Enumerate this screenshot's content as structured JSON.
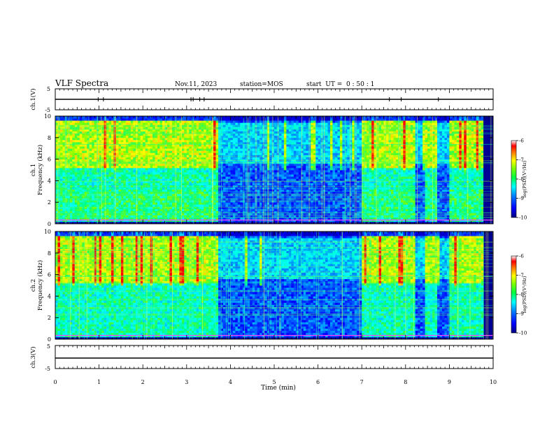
{
  "header": {
    "title": "VLF Spectra",
    "date": "Nov.11, 2023",
    "station": "station=MOS",
    "start": "start  UT =  0 : 50 : 1"
  },
  "colors": {
    "colormap": [
      "#000080",
      "#0000ff",
      "#0080ff",
      "#00ffff",
      "#00ff80",
      "#80ff00",
      "#ffff00",
      "#ff8000",
      "#ff0000",
      "#ffffff"
    ],
    "line": "#000000"
  },
  "chart_data": [
    {
      "id": "ch1-waveform",
      "type": "line",
      "ylabel": "ch.1(V)",
      "ylim": [
        -5,
        5
      ],
      "yticks": [
        "5",
        "-5"
      ],
      "x": [
        0,
        10
      ],
      "values": [
        0,
        0
      ]
    },
    {
      "id": "ch1-spectrogram",
      "type": "heatmap",
      "ylabel": "ch.1",
      "ylabel2": "Frequency (kHz)",
      "ylim": [
        0,
        10
      ],
      "yticks": [
        "0",
        "2",
        "4",
        "6",
        "8",
        "10"
      ],
      "xlim": [
        0,
        10
      ],
      "colorbar": {
        "label": "log(PSD)(V²/Hz)",
        "range": [
          -10,
          -6
        ],
        "ticks": [
          "-6",
          "-7",
          "-8",
          "-9",
          "-10"
        ]
      },
      "segments": [
        {
          "t_start": 0.0,
          "t_end": 3.7,
          "activity": "high"
        },
        {
          "t_start": 3.7,
          "t_end": 7.0,
          "activity": "low"
        },
        {
          "t_start": 7.0,
          "t_end": 8.2,
          "activity": "high"
        },
        {
          "t_start": 8.2,
          "t_end": 8.45,
          "activity": "low"
        },
        {
          "t_start": 8.45,
          "t_end": 8.75,
          "activity": "high"
        },
        {
          "t_start": 8.75,
          "t_end": 9.0,
          "activity": "low"
        },
        {
          "t_start": 9.0,
          "t_end": 9.8,
          "activity": "high"
        }
      ]
    },
    {
      "id": "ch2-spectrogram",
      "type": "heatmap",
      "ylabel": "ch.2",
      "ylabel2": "Frequency (kHz)",
      "ylim": [
        0,
        10
      ],
      "yticks": [
        "0",
        "2",
        "4",
        "6",
        "8",
        "10"
      ],
      "xlim": [
        0,
        10
      ],
      "colorbar": {
        "label": "log(PSD)(V²/Hz)",
        "range": [
          -10,
          -6
        ],
        "ticks": [
          "-6",
          "-7",
          "-8",
          "-9",
          "-10"
        ]
      },
      "segments": [
        {
          "t_start": 0.0,
          "t_end": 3.7,
          "activity": "high"
        },
        {
          "t_start": 3.7,
          "t_end": 7.0,
          "activity": "low"
        },
        {
          "t_start": 7.0,
          "t_end": 8.2,
          "activity": "high"
        },
        {
          "t_start": 8.2,
          "t_end": 8.45,
          "activity": "low"
        },
        {
          "t_start": 8.45,
          "t_end": 8.75,
          "activity": "high"
        },
        {
          "t_start": 8.75,
          "t_end": 9.0,
          "activity": "low"
        },
        {
          "t_start": 9.0,
          "t_end": 9.8,
          "activity": "high"
        }
      ]
    },
    {
      "id": "ch3-waveform",
      "type": "line",
      "ylabel": "ch.3(V)",
      "ylim": [
        -5,
        5
      ],
      "yticks": [
        "5",
        "-5"
      ],
      "x": [
        0,
        10
      ],
      "values": [
        0,
        0
      ]
    }
  ],
  "xaxis": {
    "label": "Time (min)",
    "ticks": [
      "0",
      "1",
      "2",
      "3",
      "4",
      "5",
      "6",
      "7",
      "8",
      "9",
      "10"
    ],
    "xlim": [
      0,
      10
    ]
  }
}
